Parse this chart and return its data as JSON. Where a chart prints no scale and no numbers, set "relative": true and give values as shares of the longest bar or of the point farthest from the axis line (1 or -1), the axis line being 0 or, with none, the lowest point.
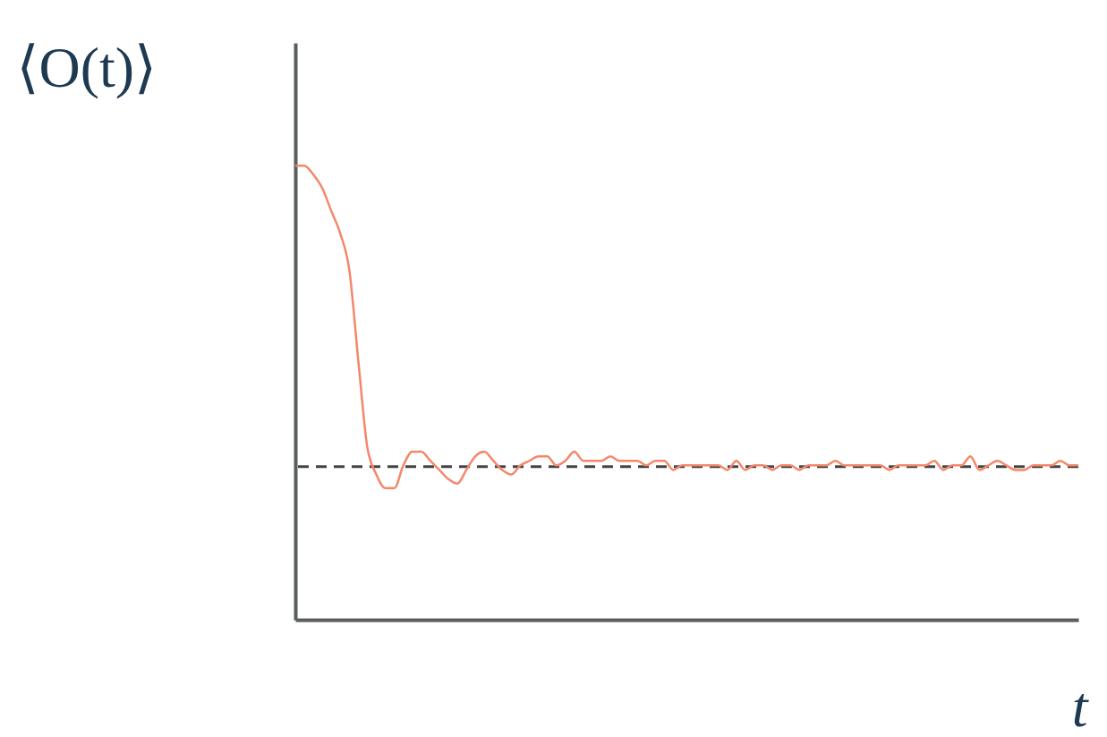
{
  "chart_data": {
    "type": "line",
    "relative": true,
    "xlabel": "t",
    "ylabel": "⟨O(t)⟩",
    "categories": [
      null,
      null,
      null,
      null,
      null,
      null,
      null,
      null,
      null,
      null,
      null,
      null,
      null,
      null,
      null,
      null,
      null,
      null,
      null,
      null,
      null,
      null,
      null,
      null,
      null,
      null,
      null,
      null,
      null,
      null,
      null,
      null,
      null,
      null,
      null,
      null,
      null,
      null,
      null,
      null,
      null,
      null,
      null,
      null,
      null,
      null,
      null,
      null,
      null,
      null,
      null,
      null,
      null,
      null,
      null,
      null,
      null,
      null,
      null,
      null,
      null,
      null,
      null,
      null,
      null,
      null,
      null,
      null,
      null,
      null,
      null,
      null,
      null,
      null,
      null,
      null,
      null,
      null,
      null,
      null,
      null,
      null,
      null,
      null,
      null,
      null,
      null,
      null
    ],
    "values": [
      1.0,
      1.0,
      0.98,
      0.95,
      0.9,
      0.85,
      0.77,
      0.57,
      0.38,
      0.32,
      0.29,
      0.29,
      0.34,
      0.37,
      0.37,
      0.35,
      0.33,
      0.31,
      0.3,
      0.33,
      0.36,
      0.37,
      0.35,
      0.33,
      0.32,
      0.34,
      0.35,
      0.36,
      0.36,
      0.34,
      0.35,
      0.37,
      0.35,
      0.35,
      0.35,
      0.36,
      0.35,
      0.35,
      0.35,
      0.34,
      0.35,
      0.35,
      0.33,
      0.34,
      0.34,
      0.34,
      0.34,
      0.34,
      0.33,
      0.35,
      0.33,
      0.34,
      0.34,
      0.33,
      0.34,
      0.34,
      0.33,
      0.34,
      0.34,
      0.34,
      0.35,
      0.34,
      0.34,
      0.34,
      0.34,
      0.34,
      0.33,
      0.34,
      0.34,
      0.34,
      0.34,
      0.35,
      0.33,
      0.34,
      0.34,
      0.36,
      0.33,
      0.34,
      0.35,
      0.34,
      0.33,
      0.33,
      0.34,
      0.34,
      0.34,
      0.35,
      0.34,
      0.34
    ],
    "color": "#f4876a",
    "line_style": "solid",
    "grid": false,
    "ref_lines": [
      {
        "axis": "y",
        "value": 0.337,
        "label": null,
        "color": "#444444",
        "line_style": "dashed"
      }
    ]
  }
}
